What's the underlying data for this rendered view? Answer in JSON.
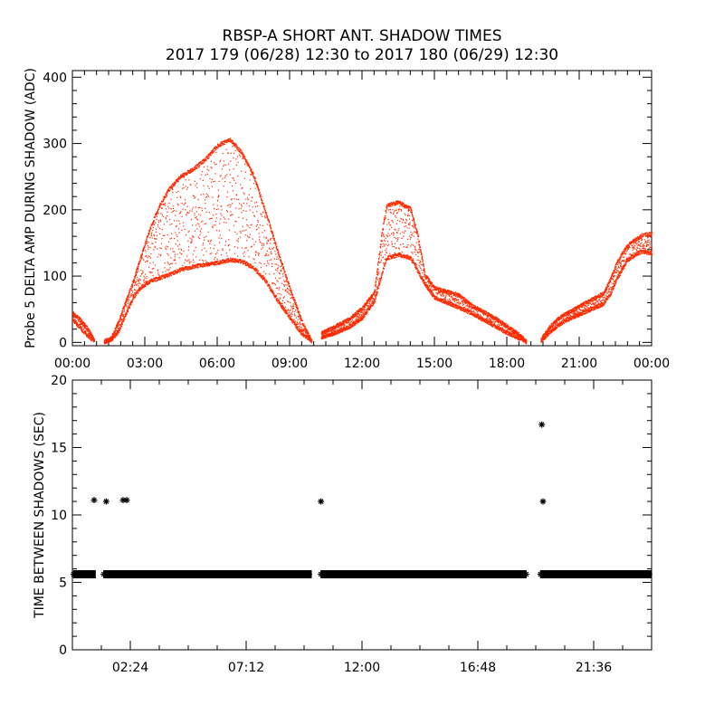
{
  "title": "RBSP-A SHORT ANT. SHADOW TIMES",
  "subtitle": "2017 179 (06/28) 12:30 to 2017 180 (06/29) 12:30",
  "colors": {
    "top_points": "#ff2a00",
    "bottom_points": "#000000",
    "axes": "#000000"
  },
  "chart_data": [
    {
      "type": "scatter",
      "ylabel": "Probe 5 DELTA AMP DURING SHADOW (ADC)",
      "xlabel": "",
      "xlim": [
        0,
        24
      ],
      "ylim": [
        -5,
        410
      ],
      "x_ticks": [
        0,
        3,
        6,
        9,
        12,
        15,
        18,
        21,
        24
      ],
      "x_tick_labels": [
        "00:00",
        "03:00",
        "06:00",
        "09:00",
        "12:00",
        "15:00",
        "18:00",
        "21:00",
        "00:00"
      ],
      "y_ticks": [
        0,
        100,
        200,
        300,
        400
      ],
      "y_tick_labels": [
        "0",
        "100",
        "200",
        "300",
        "400"
      ],
      "grid": false,
      "series": [
        {
          "color": "#ff2a00",
          "bands": [
            {
              "x": [
                0.0,
                0.3,
                0.6,
                0.9
              ],
              "upper": [
                48,
                38,
                25,
                6
              ],
              "lower": [
                32,
                20,
                8,
                0
              ]
            },
            {
              "x": [
                1.3,
                1.6,
                1.9,
                2.2,
                2.5,
                2.8,
                3.2,
                3.6,
                4.0,
                4.5,
                5.0,
                5.5,
                6.0,
                6.5,
                7.0,
                7.5,
                8.0,
                8.5,
                9.0,
                9.5,
                9.9
              ],
              "upper": [
                3,
                10,
                35,
                65,
                95,
                130,
                175,
                210,
                235,
                255,
                265,
                280,
                300,
                310,
                290,
                255,
                200,
                140,
                85,
                35,
                5
              ],
              "lower": [
                0,
                2,
                15,
                40,
                65,
                80,
                90,
                95,
                100,
                108,
                112,
                115,
                118,
                122,
                120,
                110,
                90,
                60,
                35,
                10,
                0
              ]
            },
            {
              "x": [
                10.3,
                10.7,
                11.0,
                11.5,
                12.0,
                12.5,
                12.8,
                13.0,
                13.5,
                14.0,
                14.3,
                14.6,
                15.0,
                15.5,
                16.0,
                16.5,
                17.0,
                17.5,
                18.0,
                18.5,
                18.8
              ],
              "upper": [
                18,
                24,
                30,
                40,
                55,
                80,
                165,
                210,
                215,
                205,
                165,
                105,
                85,
                80,
                75,
                60,
                50,
                40,
                28,
                15,
                4
              ],
              "lower": [
                5,
                10,
                14,
                22,
                35,
                60,
                100,
                125,
                130,
                125,
                105,
                85,
                65,
                58,
                50,
                42,
                32,
                22,
                12,
                4,
                0
              ]
            },
            {
              "x": [
                19.4,
                19.8,
                20.2,
                20.6,
                21.0,
                21.5,
                22.0,
                22.3,
                22.5,
                22.8,
                23.0,
                23.3,
                23.6,
                24.0
              ],
              "upper": [
                8,
                28,
                42,
                50,
                58,
                68,
                78,
                100,
                120,
                140,
                150,
                158,
                165,
                168
              ],
              "lower": [
                0,
                14,
                26,
                34,
                40,
                48,
                56,
                72,
                90,
                110,
                122,
                130,
                135,
                132
              ]
            }
          ]
        }
      ]
    },
    {
      "type": "scatter",
      "ylabel": "TIME BETWEEN SHADOWS (SEC)",
      "xlabel": "",
      "xlim": [
        0,
        24
      ],
      "ylim": [
        0,
        20
      ],
      "x_ticks": [
        2.4,
        7.2,
        12.0,
        16.8,
        21.6
      ],
      "x_tick_labels": [
        "02:24",
        "07:12",
        "12:00",
        "16:48",
        "21:36"
      ],
      "y_ticks": [
        0,
        5,
        10,
        15,
        20
      ],
      "y_tick_labels": [
        "0",
        "5",
        "10",
        "15",
        "20"
      ],
      "grid": false,
      "series": [
        {
          "color": "#000000",
          "marker": "asterisk",
          "baseline_segments": [
            {
              "x": [
                0.05,
                0.95
              ],
              "y": 5.6
            },
            {
              "x": [
                1.3,
                9.9
              ],
              "y": 5.6
            },
            {
              "x": [
                10.3,
                18.8
              ],
              "y": 5.6
            },
            {
              "x": [
                19.4,
                24.0
              ],
              "y": 5.6
            }
          ],
          "outliers": [
            {
              "x": 0.9,
              "y": 11.1
            },
            {
              "x": 1.4,
              "y": 11.0
            },
            {
              "x": 2.1,
              "y": 11.1
            },
            {
              "x": 2.25,
              "y": 11.1
            },
            {
              "x": 10.3,
              "y": 11.0
            },
            {
              "x": 19.45,
              "y": 16.7
            },
            {
              "x": 19.5,
              "y": 11.0
            }
          ]
        }
      ]
    }
  ]
}
